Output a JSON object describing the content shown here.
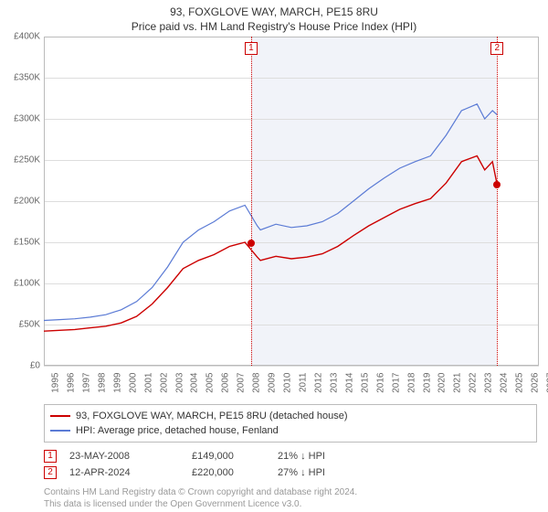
{
  "title": "93, FOXGLOVE WAY, MARCH, PE15 8RU",
  "subtitle": "Price paid vs. HM Land Registry's House Price Index (HPI)",
  "chart": {
    "type": "line",
    "ylim": [
      0,
      400000
    ],
    "ytick_step": 50000,
    "y_prefix": "£",
    "y_suffix": "K",
    "y_divisor": 1000,
    "xlim": [
      1995,
      2027
    ],
    "xtick_step": 1,
    "background_color": "#ffffff",
    "grid_color": "#dddddd",
    "axis_color": "#bbbbbb",
    "label_fontsize": 10,
    "label_color": "#666666",
    "shaded_region": {
      "start": 2008.4,
      "end": 2024.3,
      "color": "rgba(120,140,200,0.10)"
    },
    "series": [
      {
        "name": "hpi",
        "label": "HPI: Average price, detached house, Fenland",
        "color": "#5b7bd5",
        "line_width": 1.2,
        "data": [
          [
            1995,
            55000
          ],
          [
            1996,
            56000
          ],
          [
            1997,
            57000
          ],
          [
            1998,
            59000
          ],
          [
            1999,
            62000
          ],
          [
            2000,
            68000
          ],
          [
            2001,
            78000
          ],
          [
            2002,
            95000
          ],
          [
            2003,
            120000
          ],
          [
            2004,
            150000
          ],
          [
            2005,
            165000
          ],
          [
            2006,
            175000
          ],
          [
            2007,
            188000
          ],
          [
            2008,
            195000
          ],
          [
            2008.8,
            170000
          ],
          [
            2009,
            165000
          ],
          [
            2010,
            172000
          ],
          [
            2011,
            168000
          ],
          [
            2012,
            170000
          ],
          [
            2013,
            175000
          ],
          [
            2014,
            185000
          ],
          [
            2015,
            200000
          ],
          [
            2016,
            215000
          ],
          [
            2017,
            228000
          ],
          [
            2018,
            240000
          ],
          [
            2019,
            248000
          ],
          [
            2020,
            255000
          ],
          [
            2021,
            280000
          ],
          [
            2022,
            310000
          ],
          [
            2023,
            318000
          ],
          [
            2023.5,
            300000
          ],
          [
            2024,
            310000
          ],
          [
            2024.3,
            305000
          ]
        ]
      },
      {
        "name": "property",
        "label": "93, FOXGLOVE WAY, MARCH, PE15 8RU (detached house)",
        "color": "#cc0000",
        "line_width": 1.4,
        "data": [
          [
            1995,
            42000
          ],
          [
            1996,
            43000
          ],
          [
            1997,
            44000
          ],
          [
            1998,
            46000
          ],
          [
            1999,
            48000
          ],
          [
            2000,
            52000
          ],
          [
            2001,
            60000
          ],
          [
            2002,
            75000
          ],
          [
            2003,
            95000
          ],
          [
            2004,
            118000
          ],
          [
            2005,
            128000
          ],
          [
            2006,
            135000
          ],
          [
            2007,
            145000
          ],
          [
            2008,
            150000
          ],
          [
            2008.8,
            132000
          ],
          [
            2009,
            128000
          ],
          [
            2010,
            133000
          ],
          [
            2011,
            130000
          ],
          [
            2012,
            132000
          ],
          [
            2013,
            136000
          ],
          [
            2014,
            145000
          ],
          [
            2015,
            158000
          ],
          [
            2016,
            170000
          ],
          [
            2017,
            180000
          ],
          [
            2018,
            190000
          ],
          [
            2019,
            197000
          ],
          [
            2020,
            203000
          ],
          [
            2021,
            222000
          ],
          [
            2022,
            248000
          ],
          [
            2023,
            255000
          ],
          [
            2023.5,
            238000
          ],
          [
            2024,
            248000
          ],
          [
            2024.3,
            220000
          ]
        ]
      }
    ],
    "markers": [
      {
        "id": "1",
        "x": 2008.4,
        "y_line": true,
        "dot_y": 149000,
        "box_color": "#cc0000",
        "line_style": "dotted"
      },
      {
        "id": "2",
        "x": 2024.3,
        "y_line": true,
        "dot_y": 220000,
        "box_color": "#cc0000",
        "line_style": "dotted"
      }
    ]
  },
  "legend": {
    "rows": [
      {
        "color": "#cc0000",
        "label": "93, FOXGLOVE WAY, MARCH, PE15 8RU (detached house)"
      },
      {
        "color": "#5b7bd5",
        "label": "HPI: Average price, detached house, Fenland"
      }
    ]
  },
  "events": [
    {
      "id": "1",
      "date": "23-MAY-2008",
      "price": "£149,000",
      "delta": "21% ↓ HPI"
    },
    {
      "id": "2",
      "date": "12-APR-2024",
      "price": "£220,000",
      "delta": "27% ↓ HPI"
    }
  ],
  "footer": {
    "line1": "Contains HM Land Registry data © Crown copyright and database right 2024.",
    "line2": "This data is licensed under the Open Government Licence v3.0."
  }
}
